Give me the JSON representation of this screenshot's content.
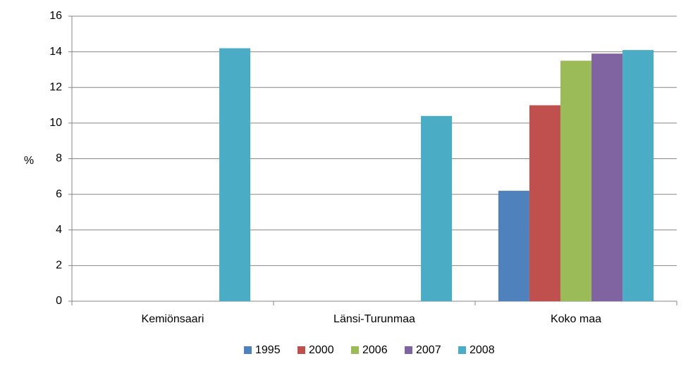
{
  "chart_data": {
    "type": "bar",
    "y_label": "%",
    "categories": [
      "Kemiönsaari",
      "Länsi-Turunmaa",
      "Koko maa"
    ],
    "series": [
      {
        "name": "1995",
        "color": "#4f81bd",
        "values": [
          null,
          null,
          6.2
        ]
      },
      {
        "name": "2000",
        "color": "#c0504d",
        "values": [
          null,
          null,
          11.0
        ]
      },
      {
        "name": "2006",
        "color": "#9bbb59",
        "values": [
          null,
          null,
          13.5
        ]
      },
      {
        "name": "2007",
        "color": "#8064a2",
        "values": [
          null,
          null,
          13.9
        ]
      },
      {
        "name": "2008",
        "color": "#4bacc6",
        "values": [
          14.2,
          10.4,
          14.1
        ]
      }
    ],
    "ylim": [
      0,
      16
    ],
    "yticks": [
      0,
      2,
      4,
      6,
      8,
      10,
      12,
      14,
      16
    ],
    "grid": true,
    "legend": "bottom"
  }
}
